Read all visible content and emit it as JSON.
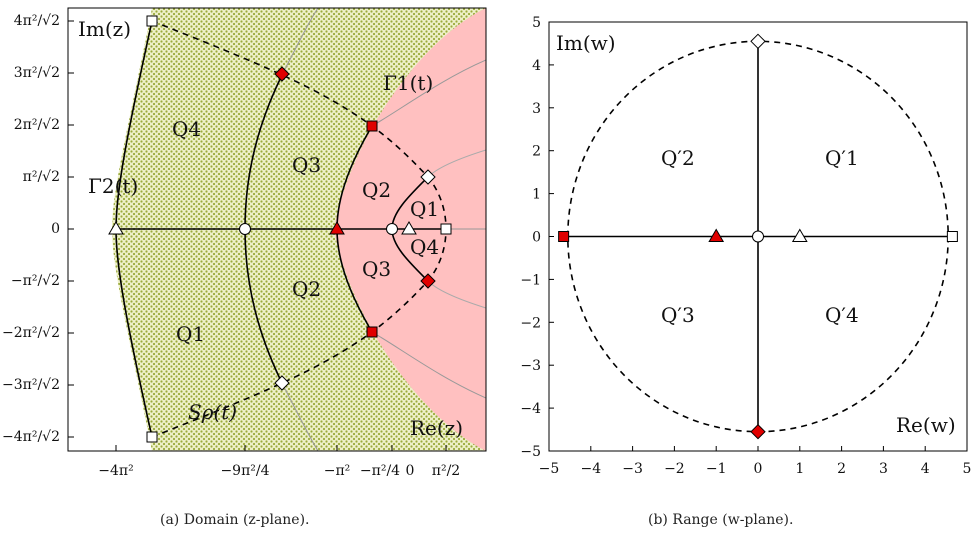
{
  "panel_a": {
    "caption": "(a) Domain (z-plane).",
    "im_label": "Im(z)",
    "re_label": "Re(z)",
    "x_ticks": [
      "−4π²",
      "−9π²/4",
      "−π²",
      "−π²/4",
      "0",
      "π²/2"
    ],
    "y_ticks": [
      "4π²/√2",
      "3π²/√2",
      "2π²/√2",
      "π²/√2",
      "0",
      "−π²/√2",
      "−2π²/√2",
      "−3π²/√2",
      "−4π²/√2"
    ],
    "regions": {
      "q1_outer": "Q1",
      "q2_outer": "Q2",
      "q3_outer": "Q3",
      "q4_outer": "Q4",
      "q1_inner": "Q1",
      "q2_inner": "Q2",
      "q3_inner": "Q3",
      "q4_inner": "Q4"
    },
    "curves": {
      "gamma1": "Γ1(t)",
      "gamma2": "Γ2(t)",
      "s_rho": "Sρ(t)"
    },
    "colors": {
      "dotted_fill": "#d8d898",
      "dot_color": "#9bab3c",
      "pink_fill": "#ffc0c0",
      "marker_red": "#e00000"
    }
  },
  "panel_b": {
    "caption": "(b) Range (w-plane).",
    "im_label": "Im(w)",
    "re_label": "Re(w)",
    "x_ticks": [
      "−5",
      "−4",
      "−3",
      "−2",
      "−1",
      "0",
      "1",
      "2",
      "3",
      "4",
      "5"
    ],
    "y_ticks": [
      "5",
      "4",
      "3",
      "2",
      "1",
      "0",
      "−1",
      "−2",
      "−3",
      "−4",
      "−5"
    ],
    "regions": {
      "q1": "Q′1",
      "q2": "Q′2",
      "q3": "Q′3",
      "q4": "Q′4"
    },
    "chart_data": {
      "type": "scatter",
      "xlim": [
        -5,
        5
      ],
      "ylim": [
        -5,
        5
      ],
      "circle_radius": 4.55,
      "markers": [
        {
          "shape": "square",
          "fill": "red",
          "x": -4.65,
          "y": 0
        },
        {
          "shape": "triangle",
          "fill": "red",
          "x": -1,
          "y": 0
        },
        {
          "shape": "circle",
          "fill": "white",
          "x": 0,
          "y": 0
        },
        {
          "shape": "triangle",
          "fill": "white",
          "x": 1,
          "y": 0
        },
        {
          "shape": "square",
          "fill": "white",
          "x": 4.65,
          "y": 0
        },
        {
          "shape": "diamond",
          "fill": "white",
          "x": 0,
          "y": 4.55
        },
        {
          "shape": "diamond",
          "fill": "red",
          "x": 0,
          "y": -4.55
        }
      ]
    }
  }
}
